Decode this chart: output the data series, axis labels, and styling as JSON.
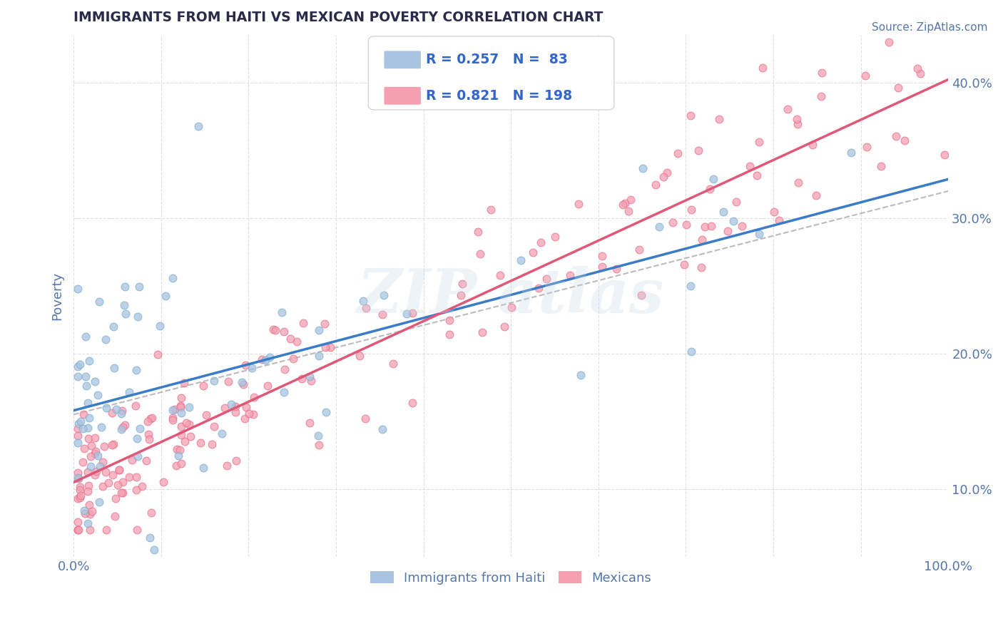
{
  "title": "IMMIGRANTS FROM HAITI VS MEXICAN POVERTY CORRELATION CHART",
  "source": "Source: ZipAtlas.com",
  "ylabel": "Poverty",
  "xlim": [
    0.0,
    1.0
  ],
  "ylim": [
    0.05,
    0.435
  ],
  "yticks": [
    0.1,
    0.2,
    0.3,
    0.4
  ],
  "ytick_labels": [
    "10.0%",
    "20.0%",
    "30.0%",
    "40.0%"
  ],
  "xticks": [
    0.0,
    0.1,
    0.2,
    0.3,
    0.4,
    0.5,
    0.6,
    0.7,
    0.8,
    0.9,
    1.0
  ],
  "haiti_color": "#a8c4e0",
  "haiti_edge_color": "#7aaed0",
  "mexico_color": "#f4a0b0",
  "mexico_edge_color": "#e87090",
  "haiti_R": 0.257,
  "haiti_N": 83,
  "mexico_R": 0.821,
  "mexico_N": 198,
  "haiti_line_color": "#3a7cc7",
  "mexico_line_color": "#e05878",
  "dashed_line_color": "#aaaaaa",
  "background_color": "#ffffff",
  "grid_color": "#cccccc",
  "title_color": "#2a2a4a",
  "axis_label_color": "#5577aa",
  "legend_text_color": "#3366cc",
  "watermark": "ZIP atlas",
  "haiti_seed": 42,
  "mexico_seed": 99
}
